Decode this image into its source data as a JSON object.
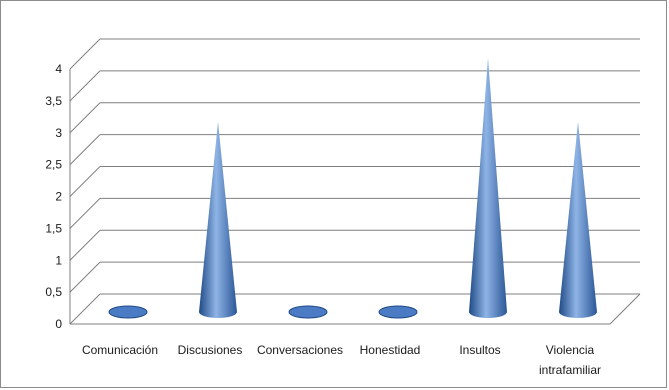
{
  "chart_data": {
    "type": "bar",
    "style": "3d-cone",
    "categories": [
      "Comunicación",
      "Discusiones",
      "Conversaciones",
      "Honestidad",
      "Insultos",
      "Violencia intrafamiliar"
    ],
    "category_lines": [
      [
        "Comunicación"
      ],
      [
        "Discusiones"
      ],
      [
        "Conversaciones"
      ],
      [
        "Honestidad"
      ],
      [
        "Insultos"
      ],
      [
        "Violencia",
        "intrafamiliar"
      ]
    ],
    "values": [
      0,
      3,
      0,
      0,
      4,
      3
    ],
    "y_ticks": [
      "0",
      "0,5",
      "1",
      "1,5",
      "2",
      "2,5",
      "3",
      "3,5",
      "4"
    ],
    "ylim": [
      0,
      4
    ],
    "grid": true,
    "legend": "none",
    "colors": {
      "cone_dark": "#1f4a86",
      "cone_light": "#8fb4e6",
      "cone_mid": "#4a7bc4",
      "grid": "#7f7f7f",
      "border": "#8c8c8c"
    }
  }
}
